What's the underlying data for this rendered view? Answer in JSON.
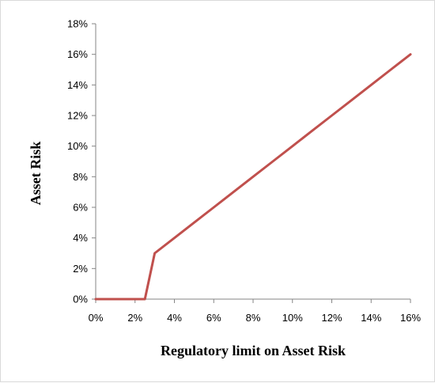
{
  "chart_data": {
    "type": "line",
    "title": "",
    "xlabel": "Regulatory limit on Asset Risk",
    "ylabel": "Asset Risk",
    "xlim": [
      0,
      16
    ],
    "ylim": [
      0,
      18
    ],
    "x_ticks": [
      "0%",
      "2%",
      "4%",
      "6%",
      "8%",
      "10%",
      "12%",
      "14%",
      "16%"
    ],
    "y_ticks": [
      "0%",
      "2%",
      "4%",
      "6%",
      "8%",
      "10%",
      "12%",
      "14%",
      "16%",
      "18%"
    ],
    "grid": false,
    "legend": "none",
    "series": [
      {
        "color": "#c0504d",
        "x": [
          0,
          2.5,
          3,
          4,
          5,
          6,
          7,
          8,
          9,
          10,
          11,
          12,
          13,
          14,
          15,
          16
        ],
        "y": [
          0,
          0,
          3,
          4,
          5,
          6,
          7,
          8,
          9,
          10,
          11,
          12,
          13,
          14,
          15,
          16
        ]
      }
    ]
  }
}
